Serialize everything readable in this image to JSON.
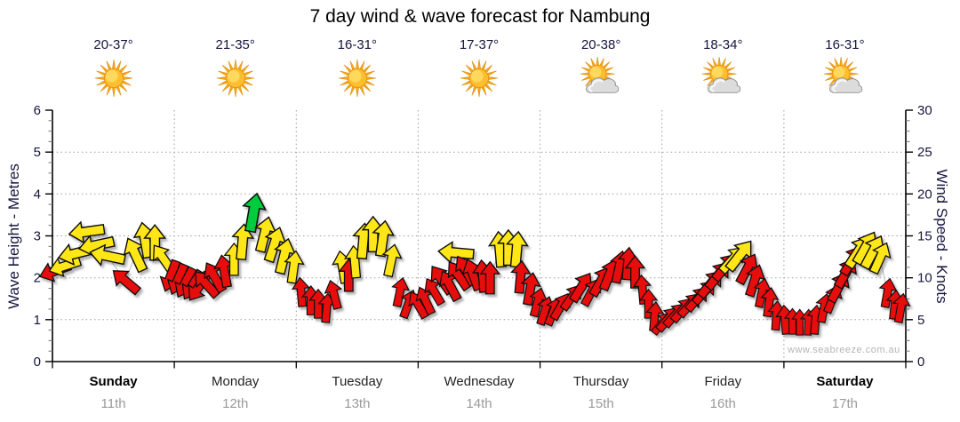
{
  "chart_data": {
    "type": "scatter",
    "title": "7 day wind & wave forecast for Nambung",
    "watermark": "www.seabreeze.com.au",
    "grid": true,
    "left_axis": {
      "label": "Wave Height - Metres",
      "min": 0,
      "max": 6,
      "ticks": [
        0,
        1,
        2,
        3,
        4,
        5,
        6
      ]
    },
    "right_axis": {
      "label": "Wind Speed - Knots",
      "min": 0,
      "max": 30,
      "ticks": [
        0,
        5,
        10,
        15,
        20,
        25,
        30
      ]
    },
    "colors": {
      "red": "#E81111",
      "yellow": "#FFE612",
      "green": "#00CC3E"
    },
    "days": [
      {
        "name": "Sunday",
        "date": "11th",
        "temps": "20-37°",
        "icon": "sunny",
        "emphasis": true
      },
      {
        "name": "Monday",
        "date": "12th",
        "temps": "21-35°",
        "icon": "sunny",
        "emphasis": false
      },
      {
        "name": "Tuesday",
        "date": "13th",
        "temps": "16-31°",
        "icon": "sunny",
        "emphasis": false
      },
      {
        "name": "Wednesday",
        "date": "14th",
        "temps": "17-37°",
        "icon": "sunny",
        "emphasis": false
      },
      {
        "name": "Thursday",
        "date": "15th",
        "temps": "20-38°",
        "icon": "partly-cloudy",
        "emphasis": false
      },
      {
        "name": "Friday",
        "date": "16th",
        "temps": "18-34°",
        "icon": "partly-cloudy",
        "emphasis": false
      },
      {
        "name": "Saturday",
        "date": "17th",
        "temps": "16-31°",
        "icon": "partly-cloudy",
        "emphasis": true
      }
    ],
    "wind_arrows_format": "[day_offset, knots, direction_deg_arrow_points_0_is_up, color]",
    "wind_arrows": [
      [
        0.02,
        10.8,
        250,
        "red"
      ],
      [
        0.1,
        11.4,
        252,
        "yellow"
      ],
      [
        0.19,
        12.9,
        256,
        "yellow"
      ],
      [
        0.28,
        15.5,
        262,
        "yellow"
      ],
      [
        0.36,
        13.9,
        258,
        "yellow"
      ],
      [
        0.45,
        12.6,
        282,
        "yellow"
      ],
      [
        0.6,
        9.6,
        310,
        "red"
      ],
      [
        0.68,
        12.8,
        335,
        "yellow"
      ],
      [
        0.76,
        14.5,
        350,
        "yellow"
      ],
      [
        0.84,
        14.2,
        0,
        "yellow"
      ],
      [
        0.91,
        12.3,
        325,
        "yellow"
      ],
      [
        0.97,
        10.2,
        200,
        "red"
      ],
      [
        1.03,
        9.8,
        203,
        "red"
      ],
      [
        1.09,
        9.4,
        207,
        "red"
      ],
      [
        1.15,
        9.1,
        211,
        "red"
      ],
      [
        1.2,
        8.9,
        214,
        "red"
      ],
      [
        1.26,
        9.3,
        318,
        "red"
      ],
      [
        1.33,
        10.1,
        330,
        "red"
      ],
      [
        1.41,
        10.8,
        350,
        "red"
      ],
      [
        1.49,
        12.2,
        0,
        "yellow"
      ],
      [
        1.56,
        14.3,
        5,
        "yellow"
      ],
      [
        1.65,
        17.8,
        10,
        "green"
      ],
      [
        1.74,
        15.2,
        14,
        "yellow"
      ],
      [
        1.82,
        14.0,
        18,
        "yellow"
      ],
      [
        1.9,
        12.6,
        14,
        "yellow"
      ],
      [
        1.98,
        11.3,
        8,
        "yellow"
      ],
      [
        2.04,
        8.3,
        355,
        "red"
      ],
      [
        2.12,
        7.3,
        0,
        "red"
      ],
      [
        2.18,
        6.9,
        0,
        "red"
      ],
      [
        2.25,
        6.4,
        5,
        "red"
      ],
      [
        2.31,
        8.0,
        345,
        "red"
      ],
      [
        2.38,
        11.3,
        350,
        "yellow"
      ],
      [
        2.43,
        10.3,
        0,
        "red"
      ],
      [
        2.48,
        11.9,
        355,
        "yellow"
      ],
      [
        2.55,
        14.4,
        5,
        "yellow"
      ],
      [
        2.63,
        15.2,
        0,
        "yellow"
      ],
      [
        2.71,
        14.7,
        8,
        "yellow"
      ],
      [
        2.78,
        12.1,
        12,
        "yellow"
      ],
      [
        2.85,
        8.3,
        12,
        "red"
      ],
      [
        2.92,
        6.9,
        20,
        "red"
      ],
      [
        3.0,
        6.8,
        330,
        "red"
      ],
      [
        3.06,
        7.3,
        335,
        "red"
      ],
      [
        3.13,
        8.4,
        330,
        "red"
      ],
      [
        3.19,
        9.8,
        325,
        "red"
      ],
      [
        3.26,
        9.1,
        332,
        "red"
      ],
      [
        3.31,
        13.0,
        275,
        "yellow"
      ],
      [
        3.33,
        10.3,
        325,
        "red"
      ],
      [
        3.39,
        10.9,
        330,
        "red"
      ],
      [
        3.45,
        10.4,
        340,
        "red"
      ],
      [
        3.53,
        10.2,
        355,
        "red"
      ],
      [
        3.59,
        10.0,
        0,
        "red"
      ],
      [
        3.67,
        13.4,
        355,
        "yellow"
      ],
      [
        3.74,
        13.6,
        0,
        "yellow"
      ],
      [
        3.81,
        13.4,
        5,
        "yellow"
      ],
      [
        3.84,
        10.1,
        5,
        "red"
      ],
      [
        3.92,
        8.7,
        10,
        "red"
      ],
      [
        3.98,
        7.1,
        15,
        "red"
      ],
      [
        4.04,
        6.1,
        18,
        "red"
      ],
      [
        4.11,
        6.0,
        22,
        "red"
      ],
      [
        4.17,
        6.6,
        30,
        "red"
      ],
      [
        4.26,
        7.7,
        35,
        "red"
      ],
      [
        4.34,
        8.9,
        32,
        "red"
      ],
      [
        4.42,
        8.3,
        28,
        "red"
      ],
      [
        4.5,
        9.6,
        30,
        "red"
      ],
      [
        4.57,
        10.4,
        22,
        "red"
      ],
      [
        4.65,
        11.3,
        12,
        "red"
      ],
      [
        4.72,
        11.7,
        5,
        "red"
      ],
      [
        4.78,
        10.7,
        0,
        "red"
      ],
      [
        4.84,
        8.6,
        355,
        "red"
      ],
      [
        4.89,
        6.9,
        0,
        "red"
      ],
      [
        4.94,
        5.4,
        5,
        "red"
      ],
      [
        5.0,
        4.6,
        38,
        "red"
      ],
      [
        5.05,
        5.1,
        40,
        "red"
      ],
      [
        5.11,
        5.6,
        42,
        "red"
      ],
      [
        5.17,
        6.2,
        40,
        "red"
      ],
      [
        5.23,
        6.8,
        42,
        "red"
      ],
      [
        5.29,
        7.5,
        40,
        "red"
      ],
      [
        5.35,
        8.3,
        42,
        "red"
      ],
      [
        5.4,
        9.3,
        40,
        "red"
      ],
      [
        5.46,
        10.3,
        38,
        "red"
      ],
      [
        5.52,
        11.3,
        40,
        "red"
      ],
      [
        5.58,
        12.2,
        42,
        "yellow"
      ],
      [
        5.64,
        12.7,
        38,
        "yellow"
      ],
      [
        5.7,
        11.1,
        28,
        "red"
      ],
      [
        5.76,
        9.7,
        18,
        "red"
      ],
      [
        5.82,
        8.2,
        12,
        "red"
      ],
      [
        5.88,
        7.1,
        8,
        "red"
      ],
      [
        5.94,
        5.5,
        4,
        "red"
      ],
      [
        6.01,
        5.0,
        355,
        "red"
      ],
      [
        6.07,
        4.8,
        0,
        "red"
      ],
      [
        6.13,
        4.7,
        0,
        "red"
      ],
      [
        6.2,
        4.7,
        2,
        "red"
      ],
      [
        6.26,
        5.0,
        5,
        "red"
      ],
      [
        6.33,
        6.4,
        12,
        "red"
      ],
      [
        6.4,
        7.5,
        22,
        "red"
      ],
      [
        6.45,
        8.9,
        28,
        "red"
      ],
      [
        6.51,
        10.6,
        30,
        "red"
      ],
      [
        6.56,
        12.1,
        32,
        "red"
      ],
      [
        6.61,
        13.1,
        33,
        "yellow"
      ],
      [
        6.67,
        13.6,
        30,
        "yellow"
      ],
      [
        6.73,
        13.1,
        28,
        "yellow"
      ],
      [
        6.79,
        12.4,
        24,
        "yellow"
      ],
      [
        6.85,
        8.2,
        10,
        "red"
      ],
      [
        6.91,
        6.8,
        6,
        "red"
      ],
      [
        6.96,
        6.4,
        10,
        "red"
      ]
    ]
  }
}
